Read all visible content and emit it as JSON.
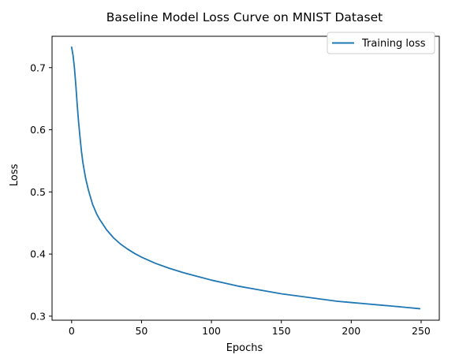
{
  "chart_data": {
    "type": "line",
    "title": "Baseline Model Loss Curve on MNIST Dataset",
    "xlabel": "Epochs",
    "ylabel": "Loss",
    "xlim": [
      -14,
      263
    ],
    "ylim": [
      0.2935,
      0.7505
    ],
    "xticks": [
      0,
      50,
      100,
      150,
      200,
      250
    ],
    "yticks": [
      0.3,
      0.4,
      0.5,
      0.6,
      0.7
    ],
    "ytick_labels": [
      "0.3",
      "0.4",
      "0.5",
      "0.6",
      "0.7"
    ],
    "grid": false,
    "legend_position": "upper-right",
    "series": [
      {
        "name": "Training loss",
        "color": "#1f77b4",
        "x": [
          0,
          1,
          2,
          3,
          4,
          5,
          6,
          7,
          8,
          10,
          12,
          15,
          18,
          20,
          25,
          30,
          35,
          40,
          45,
          50,
          60,
          70,
          80,
          90,
          100,
          110,
          120,
          130,
          140,
          150,
          160,
          170,
          180,
          190,
          200,
          210,
          220,
          230,
          240,
          249
        ],
        "values": [
          0.733,
          0.72,
          0.7,
          0.672,
          0.64,
          0.612,
          0.588,
          0.566,
          0.548,
          0.522,
          0.503,
          0.48,
          0.464,
          0.456,
          0.439,
          0.426,
          0.416,
          0.408,
          0.401,
          0.395,
          0.385,
          0.377,
          0.37,
          0.364,
          0.358,
          0.353,
          0.348,
          0.344,
          0.34,
          0.336,
          0.333,
          0.33,
          0.327,
          0.324,
          0.322,
          0.32,
          0.318,
          0.316,
          0.314,
          0.312
        ]
      }
    ]
  }
}
